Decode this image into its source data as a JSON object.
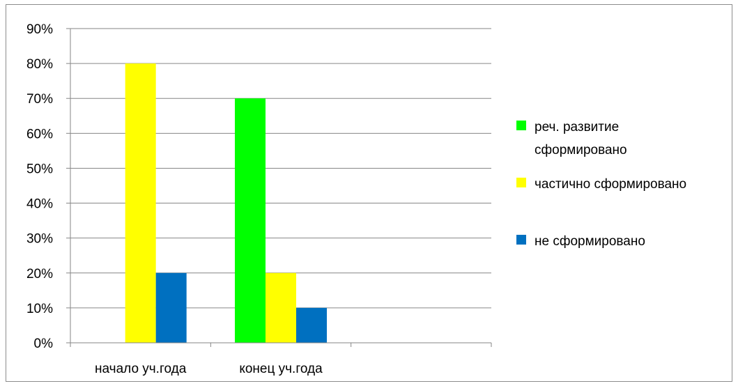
{
  "chart_data": {
    "type": "bar",
    "categories": [
      "начало уч.года",
      "конец уч.года",
      ""
    ],
    "series": [
      {
        "name": "реч. развитие сформировано",
        "legend_lines": [
          "реч. развитие",
          "сформировано"
        ],
        "color": "#00ff00",
        "values": [
          0,
          70,
          null
        ]
      },
      {
        "name": "частично сформировано",
        "legend_lines": [
          "частично сформировано"
        ],
        "color": "#ffff00",
        "values": [
          80,
          20,
          null
        ]
      },
      {
        "name": "не сформировано",
        "legend_lines": [
          "не сформировано"
        ],
        "color": "#0070c0",
        "values": [
          20,
          10,
          null
        ]
      }
    ],
    "y_ticks": [
      "0%",
      "10%",
      "20%",
      "30%",
      "40%",
      "50%",
      "60%",
      "70%",
      "80%",
      "90%"
    ],
    "ylim": [
      0,
      90
    ],
    "y_unit": "%",
    "grid": true,
    "legend_position": "right"
  }
}
